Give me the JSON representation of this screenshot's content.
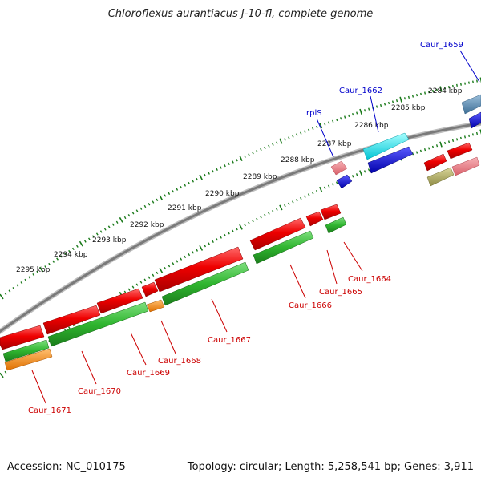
{
  "title": "Chloroflexus aurantiacus J-10-fl, complete genome",
  "footer": {
    "accession": "Accession: NC_010175",
    "topology": "Topology: circular; Length: 5,258,541 bp; Genes: 3,911"
  },
  "ticks": [
    "2284 kbp",
    "2285 kbp",
    "2286 kbp",
    "2287 kbp",
    "2288 kbp",
    "2289 kbp",
    "2290 kbp",
    "2291 kbp",
    "2292 kbp",
    "2293 kbp",
    "2294 kbp",
    "2295 kbp"
  ],
  "genes_top": [
    "Caur_1659",
    "Caur_1662",
    "rplS"
  ],
  "genes_bottom": [
    "Caur_1664",
    "Caur_1665",
    "Caur_1666",
    "Caur_1667",
    "Caur_1668",
    "Caur_1669",
    "Caur_1670",
    "Caur_1671"
  ],
  "colors": {
    "forward_cds": "#ee0000",
    "reverse_cds": "#2fb52f",
    "rna": "#ff8a00",
    "pseudo": "#e87f87",
    "cyan_feature": "#00e5ef",
    "blue_feature": "#0000ee",
    "steel_feature": "#5a8fb6",
    "olive_feature": "#b5b265",
    "backbone": "#888888",
    "tick": "#1a7a1a",
    "label_top": "#0000cc",
    "label_bottom": "#cc0000"
  }
}
